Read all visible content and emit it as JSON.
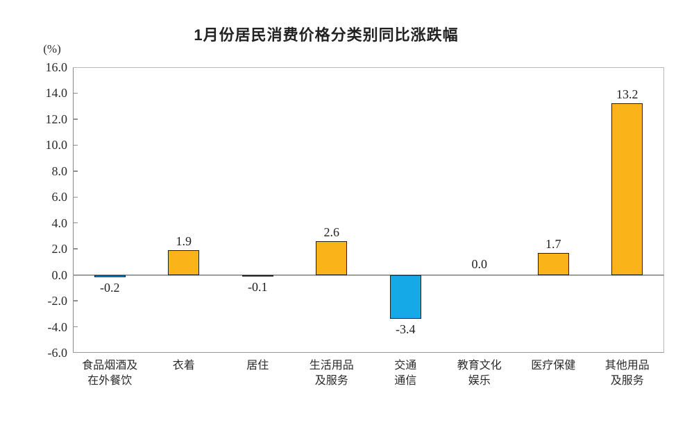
{
  "chart_data": {
    "type": "bar",
    "title": "1月份居民消费价格分类别同比涨跌幅",
    "unit": "(%)",
    "xlabel": "",
    "ylabel": "(%)",
    "ylim": [
      -6.0,
      16.0
    ],
    "ytick_labels": [
      "16.0",
      "14.0",
      "12.0",
      "10.0",
      "8.0",
      "6.0",
      "4.0",
      "2.0",
      "0.0",
      "-2.0",
      "-4.0",
      "-6.0"
    ],
    "grid": false,
    "legend": "none",
    "categories": [
      [
        "食品烟酒及",
        "在外餐饮"
      ],
      [
        "衣着"
      ],
      [
        "居住"
      ],
      [
        "生活用品",
        "及服务"
      ],
      [
        "交通",
        "通信"
      ],
      [
        "教育文化",
        "娱乐"
      ],
      [
        "医疗保健"
      ],
      [
        "其他用品",
        "及服务"
      ]
    ],
    "values": [
      -0.2,
      1.9,
      -0.1,
      2.6,
      -3.4,
      0.0,
      1.7,
      13.2
    ],
    "value_labels": [
      "-0.2",
      "1.9",
      "-0.1",
      "2.6",
      "-3.4",
      "0.0",
      "1.7",
      "13.2"
    ],
    "colors": {
      "positive_bar": "#FAB41A",
      "negative_bar": "#16A9E8",
      "bar_border": "#1e1e1e",
      "axis_line": "#8a8a8a",
      "frame_line": "#b8b8b8",
      "zero_line": "#9e9e9e",
      "text": "#1f1f1f"
    }
  }
}
